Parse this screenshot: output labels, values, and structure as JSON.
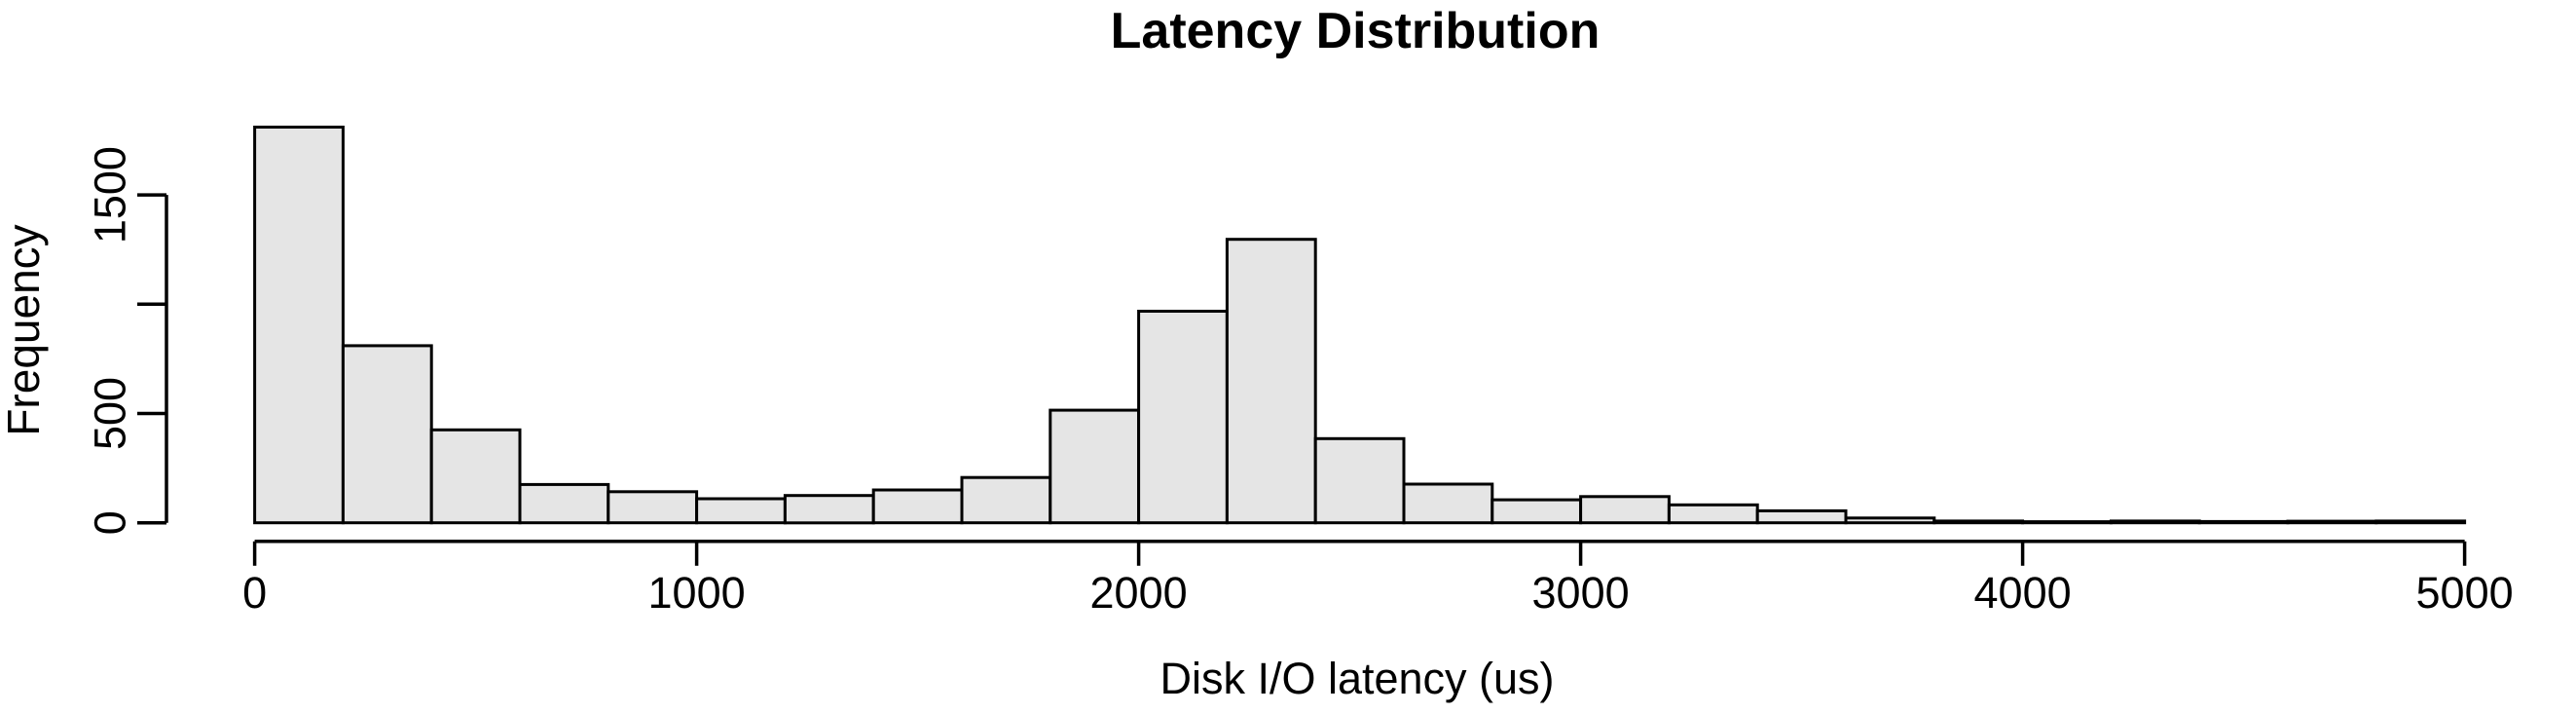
{
  "figure": {
    "background": "#ffffff"
  },
  "chart_data": {
    "type": "bar",
    "subtype": "histogram",
    "title": "Latency Distribution",
    "xlabel": "Disk I/O latency (us)",
    "ylabel": "Frequency",
    "xlim": [
      0,
      5000
    ],
    "ylim": [
      0,
      1500
    ],
    "grid": false,
    "legend": false,
    "bin_start": 0,
    "bin_width": 200,
    "counts": [
      1810,
      810,
      425,
      175,
      142,
      110,
      125,
      150,
      207,
      515,
      968,
      1297,
      385,
      177,
      105,
      120,
      82,
      55,
      22,
      8,
      5,
      8,
      6,
      7,
      8
    ],
    "x_ticks": [
      {
        "value": 0,
        "label": "0"
      },
      {
        "value": 1000,
        "label": "1000"
      },
      {
        "value": 2000,
        "label": "2000"
      },
      {
        "value": 3000,
        "label": "3000"
      },
      {
        "value": 4000,
        "label": "4000"
      },
      {
        "value": 5000,
        "label": "5000"
      }
    ],
    "y_ticks": [
      {
        "value": 0,
        "label": "0"
      },
      {
        "value": 500,
        "label": "500"
      },
      {
        "value": 1000,
        "label": ""
      },
      {
        "value": 1500,
        "label": "1500"
      }
    ],
    "colors": {
      "bar_fill": "#e5e5e5",
      "bar_stroke": "#000000",
      "axis": "#000000",
      "text": "#000000"
    }
  }
}
